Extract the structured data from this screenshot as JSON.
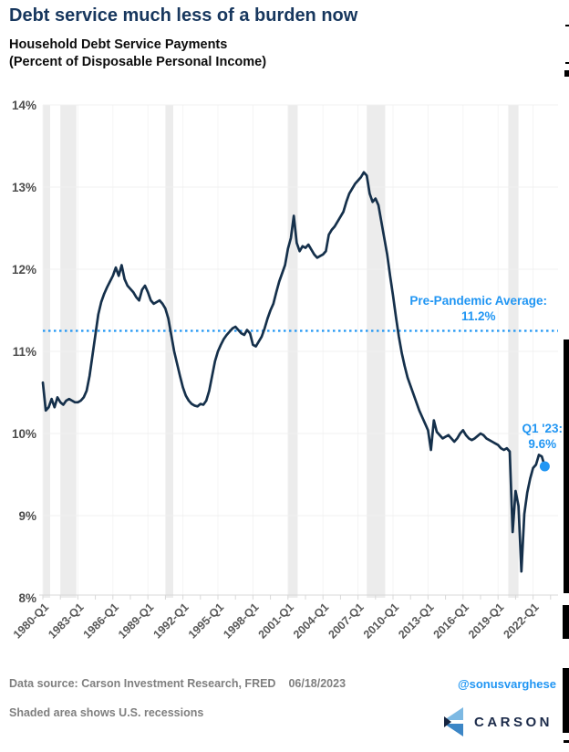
{
  "header": {
    "title": "Debt service much less of a burden now",
    "subtitle_line1": "Household Debt Service Payments",
    "subtitle_line2": "(Percent of Disposable Personal Income)"
  },
  "chart_data": {
    "type": "line",
    "title": "Household Debt Service Payments (Percent of Disposable Personal Income)",
    "x_frequency": "quarterly",
    "x_start": "1980-Q1",
    "x_end": "2023-Q1",
    "x_tick_labels": [
      "1980-Q1",
      "1983-Q1",
      "1986-Q1",
      "1989-Q1",
      "1992-Q1",
      "1995-Q1",
      "1998-Q1",
      "2001-Q1",
      "2004-Q1",
      "2007-Q1",
      "2010-Q1",
      "2013-Q1",
      "2016-Q1",
      "2019-Q1",
      "2022-Q1"
    ],
    "y_tick_labels": [
      "8%",
      "9%",
      "10%",
      "11%",
      "12%",
      "13%",
      "14%"
    ],
    "ylim": [
      8,
      14
    ],
    "grid": true,
    "series": [
      {
        "name": "Household Debt Service Payments (% of Disposable Personal Income)",
        "values": [
          10.62,
          10.28,
          10.32,
          10.42,
          10.32,
          10.44,
          10.38,
          10.35,
          10.4,
          10.42,
          10.4,
          10.38,
          10.38,
          10.4,
          10.44,
          10.52,
          10.7,
          10.95,
          11.2,
          11.45,
          11.6,
          11.7,
          11.78,
          11.85,
          11.92,
          12.02,
          11.92,
          12.05,
          11.88,
          11.8,
          11.76,
          11.72,
          11.66,
          11.62,
          11.75,
          11.8,
          11.72,
          11.62,
          11.58,
          11.6,
          11.62,
          11.58,
          11.52,
          11.4,
          11.2,
          11.0,
          10.85,
          10.7,
          10.56,
          10.46,
          10.4,
          10.36,
          10.34,
          10.33,
          10.36,
          10.35,
          10.4,
          10.52,
          10.7,
          10.88,
          11.0,
          11.08,
          11.15,
          11.2,
          11.24,
          11.28,
          11.3,
          11.26,
          11.22,
          11.2,
          11.26,
          11.22,
          11.08,
          11.06,
          11.12,
          11.18,
          11.28,
          11.4,
          11.5,
          11.58,
          11.72,
          11.85,
          11.95,
          12.05,
          12.25,
          12.38,
          12.65,
          12.32,
          12.22,
          12.28,
          12.26,
          12.3,
          12.24,
          12.18,
          12.14,
          12.16,
          12.18,
          12.22,
          12.42,
          12.48,
          12.52,
          12.58,
          12.64,
          12.7,
          12.82,
          12.92,
          12.98,
          13.04,
          13.08,
          13.12,
          13.18,
          13.14,
          12.92,
          12.82,
          12.86,
          12.78,
          12.58,
          12.38,
          12.18,
          11.92,
          11.68,
          11.42,
          11.18,
          10.98,
          10.82,
          10.68,
          10.58,
          10.48,
          10.38,
          10.28,
          10.2,
          10.12,
          10.04,
          9.8,
          10.16,
          10.02,
          9.98,
          9.94,
          9.96,
          9.98,
          9.94,
          9.9,
          9.94,
          10.0,
          10.04,
          9.98,
          9.94,
          9.92,
          9.94,
          9.97,
          10.0,
          9.98,
          9.94,
          9.92,
          9.9,
          9.88,
          9.86,
          9.82,
          9.8,
          9.82,
          9.78,
          8.8,
          9.3,
          9.12,
          8.32,
          9.02,
          9.28,
          9.45,
          9.58,
          9.62,
          9.74,
          9.72,
          9.6
        ]
      }
    ],
    "pre_pandemic_average": {
      "label_line1": "Pre-Pandemic Average:",
      "label_line2": "11.2%",
      "value": 11.2,
      "draw_value": 11.25
    },
    "latest_point": {
      "label_line1": "Q1 '23:",
      "label_line2": "9.6%",
      "x": "2023-Q1",
      "value": 9.6
    },
    "recessions_note": "Shaded area shows U.S. recessions",
    "recession_bands_quarter_index": [
      [
        0,
        2.5
      ],
      [
        6,
        11.5
      ],
      [
        42,
        44.7
      ],
      [
        84,
        87.3
      ],
      [
        111,
        117.3
      ],
      [
        159.5,
        163
      ]
    ]
  },
  "footer": {
    "source": "Data source: Carson Investment Research, FRED",
    "date": "06/18/2023",
    "handle": "@sonusvarghese",
    "recessions_note": "Shaded area shows U.S. recessions",
    "brand": "CARSON"
  },
  "colors": {
    "title_navy": "#17375e",
    "line_navy": "#15304b",
    "accent_blue": "#2196f3",
    "gray_text": "#7f7f7f",
    "axis_text": "#595959",
    "recession_band": "#ececec",
    "gridline": "#f0f0f0",
    "axis_line": "#d9d9d9"
  }
}
